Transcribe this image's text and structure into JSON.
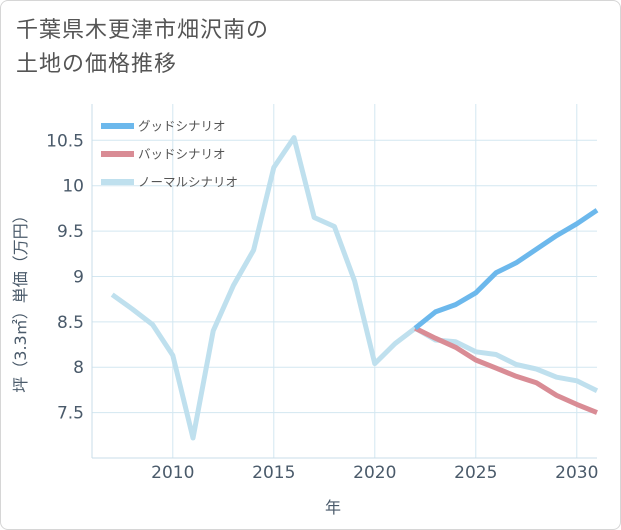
{
  "chart_data": {
    "type": "line",
    "title": [
      "千葉県木更津市畑沢南の",
      "土地の価格推移"
    ],
    "xlabel": "年",
    "ylabel": "坪（3.3㎡）単価（万円）",
    "xlim": [
      2006,
      2031
    ],
    "ylim": [
      7.0,
      10.9
    ],
    "x_ticks": [
      2010,
      2015,
      2020,
      2025,
      2030
    ],
    "y_ticks": [
      7.5,
      8,
      8.5,
      9,
      9.5,
      10,
      10.5
    ],
    "y_tick_labels": [
      "7.5",
      "8",
      "8.5",
      "9",
      "9.5",
      "10",
      "10.5"
    ],
    "legend_position": "top-left",
    "series": [
      {
        "name": "グッドシナリオ",
        "color": "#6cb8ec",
        "x": [
          2022,
          2023,
          2024,
          2025,
          2026,
          2027,
          2028,
          2029,
          2030,
          2031
        ],
        "values": [
          8.43,
          8.61,
          8.69,
          8.82,
          9.04,
          9.15,
          9.3,
          9.45,
          9.58,
          9.73
        ]
      },
      {
        "name": "バッドシナリオ",
        "color": "#d98c95",
        "x": [
          2022,
          2023,
          2024,
          2025,
          2026,
          2027,
          2028,
          2029,
          2030,
          2031
        ],
        "values": [
          8.43,
          8.32,
          8.22,
          8.08,
          7.99,
          7.9,
          7.83,
          7.69,
          7.59,
          7.5
        ]
      },
      {
        "name": "ノーマルシナリオ",
        "color": "#bfe0ee",
        "x": [
          2007,
          2008,
          2009,
          2010,
          2011,
          2012,
          2013,
          2014,
          2015,
          2016,
          2017,
          2018,
          2019,
          2020,
          2021,
          2022,
          2023,
          2024,
          2025,
          2026,
          2027,
          2028,
          2029,
          2030,
          2031
        ],
        "values": [
          8.8,
          8.64,
          8.47,
          8.13,
          7.22,
          8.4,
          8.9,
          9.29,
          10.2,
          10.53,
          9.65,
          9.55,
          8.95,
          8.04,
          8.26,
          8.43,
          8.3,
          8.28,
          8.17,
          8.14,
          8.03,
          7.98,
          7.89,
          7.85,
          7.74
        ]
      }
    ]
  }
}
